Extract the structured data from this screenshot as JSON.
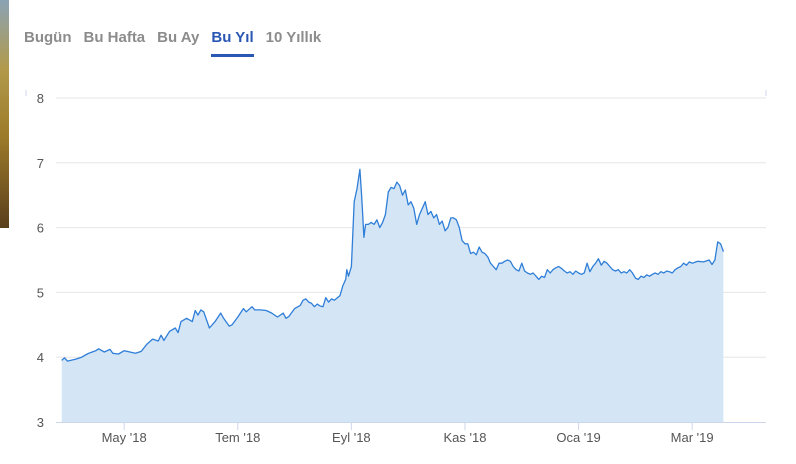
{
  "tabs": [
    {
      "label": "Bugün",
      "active": false
    },
    {
      "label": "Bu Hafta",
      "active": false
    },
    {
      "label": "Bu Ay",
      "active": false
    },
    {
      "label": "Bu Yıl",
      "active": true
    },
    {
      "label": "10 Yıllık",
      "active": false
    }
  ],
  "colors": {
    "line": "#2f7ed8",
    "area": "#d4e6f5",
    "accent": "#2a57b3",
    "grid": "#e6e6e6",
    "axis": "#ccd6eb"
  },
  "chart_data": {
    "type": "area",
    "title": "",
    "xlabel": "",
    "ylabel": "",
    "ylim": [
      3,
      8
    ],
    "yticks": [
      3,
      4,
      5,
      6,
      7,
      8
    ],
    "xlim": [
      0,
      12.5
    ],
    "xticks": [
      {
        "label": "May '18",
        "pos": 1.2
      },
      {
        "label": "Tem '18",
        "pos": 3.2
      },
      {
        "label": "Eyl '18",
        "pos": 5.2
      },
      {
        "label": "Kas '18",
        "pos": 7.2
      },
      {
        "label": "Oca '19",
        "pos": 9.2
      },
      {
        "label": "Mar '19",
        "pos": 11.2
      }
    ],
    "grid": true,
    "series": [
      {
        "values": [
          [
            0.1,
            3.95
          ],
          [
            0.15,
            3.99
          ],
          [
            0.2,
            3.94
          ],
          [
            0.35,
            3.97
          ],
          [
            0.45,
            4.0
          ],
          [
            0.55,
            4.05
          ],
          [
            0.6,
            4.07
          ],
          [
            0.7,
            4.1
          ],
          [
            0.75,
            4.13
          ],
          [
            0.85,
            4.08
          ],
          [
            0.95,
            4.12
          ],
          [
            1.0,
            4.06
          ],
          [
            1.1,
            4.05
          ],
          [
            1.2,
            4.1
          ],
          [
            1.3,
            4.08
          ],
          [
            1.4,
            4.06
          ],
          [
            1.5,
            4.09
          ],
          [
            1.6,
            4.2
          ],
          [
            1.7,
            4.28
          ],
          [
            1.8,
            4.25
          ],
          [
            1.85,
            4.34
          ],
          [
            1.9,
            4.26
          ],
          [
            2.0,
            4.4
          ],
          [
            2.1,
            4.45
          ],
          [
            2.15,
            4.38
          ],
          [
            2.2,
            4.55
          ],
          [
            2.3,
            4.6
          ],
          [
            2.4,
            4.55
          ],
          [
            2.45,
            4.72
          ],
          [
            2.5,
            4.65
          ],
          [
            2.55,
            4.73
          ],
          [
            2.6,
            4.7
          ],
          [
            2.7,
            4.45
          ],
          [
            2.8,
            4.55
          ],
          [
            2.9,
            4.68
          ],
          [
            2.95,
            4.6
          ],
          [
            3.05,
            4.48
          ],
          [
            3.1,
            4.5
          ],
          [
            3.2,
            4.62
          ],
          [
            3.3,
            4.75
          ],
          [
            3.35,
            4.7
          ],
          [
            3.45,
            4.78
          ],
          [
            3.5,
            4.73
          ],
          [
            3.6,
            4.73
          ],
          [
            3.7,
            4.72
          ],
          [
            3.8,
            4.68
          ],
          [
            3.85,
            4.65
          ],
          [
            3.9,
            4.62
          ],
          [
            4.0,
            4.68
          ],
          [
            4.05,
            4.6
          ],
          [
            4.1,
            4.63
          ],
          [
            4.2,
            4.75
          ],
          [
            4.3,
            4.8
          ],
          [
            4.35,
            4.88
          ],
          [
            4.4,
            4.9
          ],
          [
            4.45,
            4.85
          ],
          [
            4.5,
            4.83
          ],
          [
            4.55,
            4.78
          ],
          [
            4.6,
            4.82
          ],
          [
            4.65,
            4.79
          ],
          [
            4.7,
            4.78
          ],
          [
            4.75,
            4.92
          ],
          [
            4.8,
            4.85
          ],
          [
            4.85,
            4.9
          ],
          [
            4.9,
            4.88
          ],
          [
            5.0,
            4.95
          ],
          [
            5.05,
            5.1
          ],
          [
            5.1,
            5.2
          ],
          [
            5.12,
            5.35
          ],
          [
            5.15,
            5.25
          ],
          [
            5.2,
            5.4
          ],
          [
            5.25,
            6.4
          ],
          [
            5.3,
            6.6
          ],
          [
            5.35,
            6.9
          ],
          [
            5.38,
            6.5
          ],
          [
            5.4,
            6.2
          ],
          [
            5.42,
            5.85
          ],
          [
            5.45,
            6.05
          ],
          [
            5.5,
            6.05
          ],
          [
            5.55,
            6.08
          ],
          [
            5.6,
            6.05
          ],
          [
            5.65,
            6.12
          ],
          [
            5.7,
            6.0
          ],
          [
            5.75,
            6.08
          ],
          [
            5.8,
            6.2
          ],
          [
            5.85,
            6.55
          ],
          [
            5.9,
            6.62
          ],
          [
            5.95,
            6.6
          ],
          [
            6.0,
            6.7
          ],
          [
            6.05,
            6.65
          ],
          [
            6.1,
            6.5
          ],
          [
            6.15,
            6.58
          ],
          [
            6.2,
            6.35
          ],
          [
            6.25,
            6.4
          ],
          [
            6.3,
            6.3
          ],
          [
            6.35,
            6.05
          ],
          [
            6.4,
            6.2
          ],
          [
            6.45,
            6.3
          ],
          [
            6.5,
            6.4
          ],
          [
            6.55,
            6.2
          ],
          [
            6.6,
            6.25
          ],
          [
            6.65,
            6.15
          ],
          [
            6.7,
            6.2
          ],
          [
            6.75,
            6.05
          ],
          [
            6.8,
            6.1
          ],
          [
            6.85,
            5.95
          ],
          [
            6.9,
            6.0
          ],
          [
            6.95,
            6.15
          ],
          [
            7.0,
            6.15
          ],
          [
            7.05,
            6.12
          ],
          [
            7.1,
            6.0
          ],
          [
            7.15,
            5.8
          ],
          [
            7.2,
            5.75
          ],
          [
            7.25,
            5.75
          ],
          [
            7.3,
            5.6
          ],
          [
            7.35,
            5.62
          ],
          [
            7.4,
            5.58
          ],
          [
            7.45,
            5.7
          ],
          [
            7.5,
            5.62
          ],
          [
            7.55,
            5.6
          ],
          [
            7.6,
            5.55
          ],
          [
            7.65,
            5.45
          ],
          [
            7.7,
            5.4
          ],
          [
            7.75,
            5.35
          ],
          [
            7.8,
            5.45
          ],
          [
            7.85,
            5.45
          ],
          [
            7.9,
            5.48
          ],
          [
            7.95,
            5.5
          ],
          [
            8.0,
            5.48
          ],
          [
            8.05,
            5.4
          ],
          [
            8.1,
            5.35
          ],
          [
            8.15,
            5.33
          ],
          [
            8.2,
            5.45
          ],
          [
            8.25,
            5.33
          ],
          [
            8.3,
            5.3
          ],
          [
            8.35,
            5.28
          ],
          [
            8.4,
            5.3
          ],
          [
            8.45,
            5.25
          ],
          [
            8.5,
            5.2
          ],
          [
            8.55,
            5.25
          ],
          [
            8.6,
            5.23
          ],
          [
            8.65,
            5.35
          ],
          [
            8.7,
            5.3
          ],
          [
            8.75,
            5.35
          ],
          [
            8.8,
            5.38
          ],
          [
            8.85,
            5.4
          ],
          [
            8.9,
            5.37
          ],
          [
            8.95,
            5.33
          ],
          [
            9.0,
            5.3
          ],
          [
            9.05,
            5.32
          ],
          [
            9.1,
            5.28
          ],
          [
            9.15,
            5.33
          ],
          [
            9.2,
            5.3
          ],
          [
            9.25,
            5.28
          ],
          [
            9.3,
            5.3
          ],
          [
            9.35,
            5.45
          ],
          [
            9.4,
            5.32
          ],
          [
            9.45,
            5.4
          ],
          [
            9.5,
            5.45
          ],
          [
            9.55,
            5.52
          ],
          [
            9.6,
            5.42
          ],
          [
            9.65,
            5.48
          ],
          [
            9.7,
            5.45
          ],
          [
            9.75,
            5.4
          ],
          [
            9.8,
            5.35
          ],
          [
            9.85,
            5.33
          ],
          [
            9.9,
            5.35
          ],
          [
            9.95,
            5.3
          ],
          [
            10.0,
            5.32
          ],
          [
            10.05,
            5.3
          ],
          [
            10.1,
            5.35
          ],
          [
            10.15,
            5.3
          ],
          [
            10.2,
            5.22
          ],
          [
            10.25,
            5.2
          ],
          [
            10.3,
            5.25
          ],
          [
            10.35,
            5.23
          ],
          [
            10.4,
            5.27
          ],
          [
            10.45,
            5.25
          ],
          [
            10.5,
            5.28
          ],
          [
            10.55,
            5.3
          ],
          [
            10.6,
            5.28
          ],
          [
            10.65,
            5.32
          ],
          [
            10.7,
            5.3
          ],
          [
            10.75,
            5.33
          ],
          [
            10.8,
            5.32
          ],
          [
            10.85,
            5.3
          ],
          [
            10.9,
            5.35
          ],
          [
            10.95,
            5.38
          ],
          [
            11.0,
            5.4
          ],
          [
            11.05,
            5.45
          ],
          [
            11.1,
            5.42
          ],
          [
            11.15,
            5.47
          ],
          [
            11.2,
            5.45
          ],
          [
            11.3,
            5.48
          ],
          [
            11.4,
            5.47
          ],
          [
            11.5,
            5.5
          ],
          [
            11.55,
            5.43
          ],
          [
            11.6,
            5.5
          ],
          [
            11.65,
            5.78
          ],
          [
            11.7,
            5.75
          ],
          [
            11.75,
            5.63
          ]
        ]
      }
    ]
  }
}
